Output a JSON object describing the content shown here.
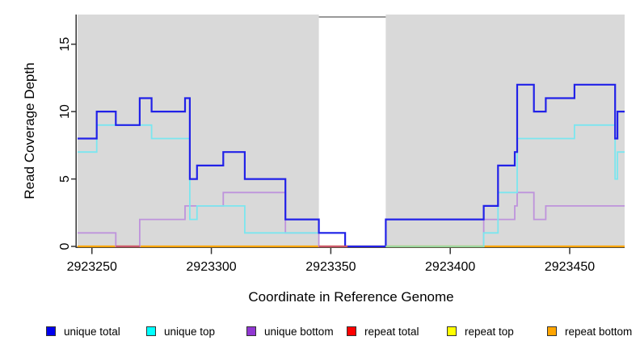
{
  "chart_data": {
    "type": "line",
    "subtype": "step-coverage",
    "title": "",
    "xlabel": "Coordinate in Reference Genome",
    "ylabel": "Read Coverage Depth",
    "xlim": [
      2923244,
      2923473
    ],
    "ylim": [
      0,
      17.2
    ],
    "x_ticks": [
      2923250,
      2923300,
      2923350,
      2923400,
      2923450
    ],
    "y_ticks": [
      0,
      5,
      10,
      15
    ],
    "grid": false,
    "legend_position": "bottom",
    "plot_background": "#d9d9d9",
    "axis_color": "#333333",
    "mask_band": {
      "x_start": 2923345,
      "x_end": 2923373,
      "color": "#ffffff",
      "top_border_color": "#999999"
    },
    "series": [
      {
        "name": "unique total",
        "color": "#2121e8",
        "legend_color": "#0000ee",
        "width": 2.2,
        "steps": [
          [
            2923244,
            8
          ],
          [
            2923252,
            10
          ],
          [
            2923260,
            9
          ],
          [
            2923270,
            11
          ],
          [
            2923275,
            10
          ],
          [
            2923289,
            11
          ],
          [
            2923291,
            5
          ],
          [
            2923294,
            6
          ],
          [
            2923305,
            7
          ],
          [
            2923314,
            5
          ],
          [
            2923331,
            2
          ],
          [
            2923345,
            1
          ],
          [
            2923356,
            0
          ],
          [
            2923373,
            2
          ],
          [
            2923414,
            3
          ],
          [
            2923420,
            6
          ],
          [
            2923427,
            7
          ],
          [
            2923428,
            12
          ],
          [
            2923435,
            10
          ],
          [
            2923440,
            11
          ],
          [
            2923452,
            12
          ],
          [
            2923469,
            8
          ],
          [
            2923470,
            10
          ]
        ]
      },
      {
        "name": "unique top",
        "color": "#7be6ef",
        "legend_color": "#00ffff",
        "width": 1.8,
        "steps": [
          [
            2923244,
            7
          ],
          [
            2923252,
            9
          ],
          [
            2923275,
            8
          ],
          [
            2923291,
            2
          ],
          [
            2923294,
            3
          ],
          [
            2923314,
            1
          ],
          [
            2923356,
            0
          ],
          [
            2923414,
            1
          ],
          [
            2923420,
            4
          ],
          [
            2923428,
            8
          ],
          [
            2923452,
            9
          ],
          [
            2923469,
            5
          ],
          [
            2923470,
            7
          ]
        ]
      },
      {
        "name": "unique bottom",
        "color": "#be93dc",
        "legend_color": "#9137d2",
        "width": 1.8,
        "steps": [
          [
            2923244,
            1
          ],
          [
            2923260,
            0
          ],
          [
            2923270,
            2
          ],
          [
            2923289,
            3
          ],
          [
            2923305,
            4
          ],
          [
            2923331,
            1
          ],
          [
            2923345,
            0
          ],
          [
            2923414,
            2
          ],
          [
            2923427,
            3
          ],
          [
            2923428,
            4
          ],
          [
            2923435,
            2
          ],
          [
            2923440,
            3
          ]
        ]
      },
      {
        "name": "repeat total",
        "color": "#ff2222",
        "legend_color": "#ff0000",
        "width": 1.8,
        "steps": [
          [
            2923244,
            0
          ]
        ]
      },
      {
        "name": "repeat top",
        "color": "#ffff00",
        "legend_color": "#ffff00",
        "width": 1.8,
        "steps": [
          [
            2923244,
            0
          ]
        ]
      },
      {
        "name": "repeat bottom",
        "color": "#ffa500",
        "legend_color": "#ffa500",
        "width": 2.2,
        "steps": [
          [
            2923244,
            0
          ]
        ]
      }
    ],
    "baseline_overlays": [
      {
        "x_start": 2923260,
        "x_end": 2923270,
        "color": "#c9566b"
      },
      {
        "x_start": 2923345,
        "x_end": 2923357,
        "color": "#c9566b"
      },
      {
        "x_start": 2923373,
        "x_end": 2923414,
        "color": "#9cd89f"
      }
    ],
    "legend": [
      {
        "label": "unique total",
        "color": "#0000ee"
      },
      {
        "label": "unique top",
        "color": "#00ffff"
      },
      {
        "label": "unique bottom",
        "color": "#9137d2"
      },
      {
        "label": "repeat total",
        "color": "#ff0000"
      },
      {
        "label": "repeat top",
        "color": "#ffff00"
      },
      {
        "label": "repeat bottom",
        "color": "#ffa500"
      }
    ]
  }
}
